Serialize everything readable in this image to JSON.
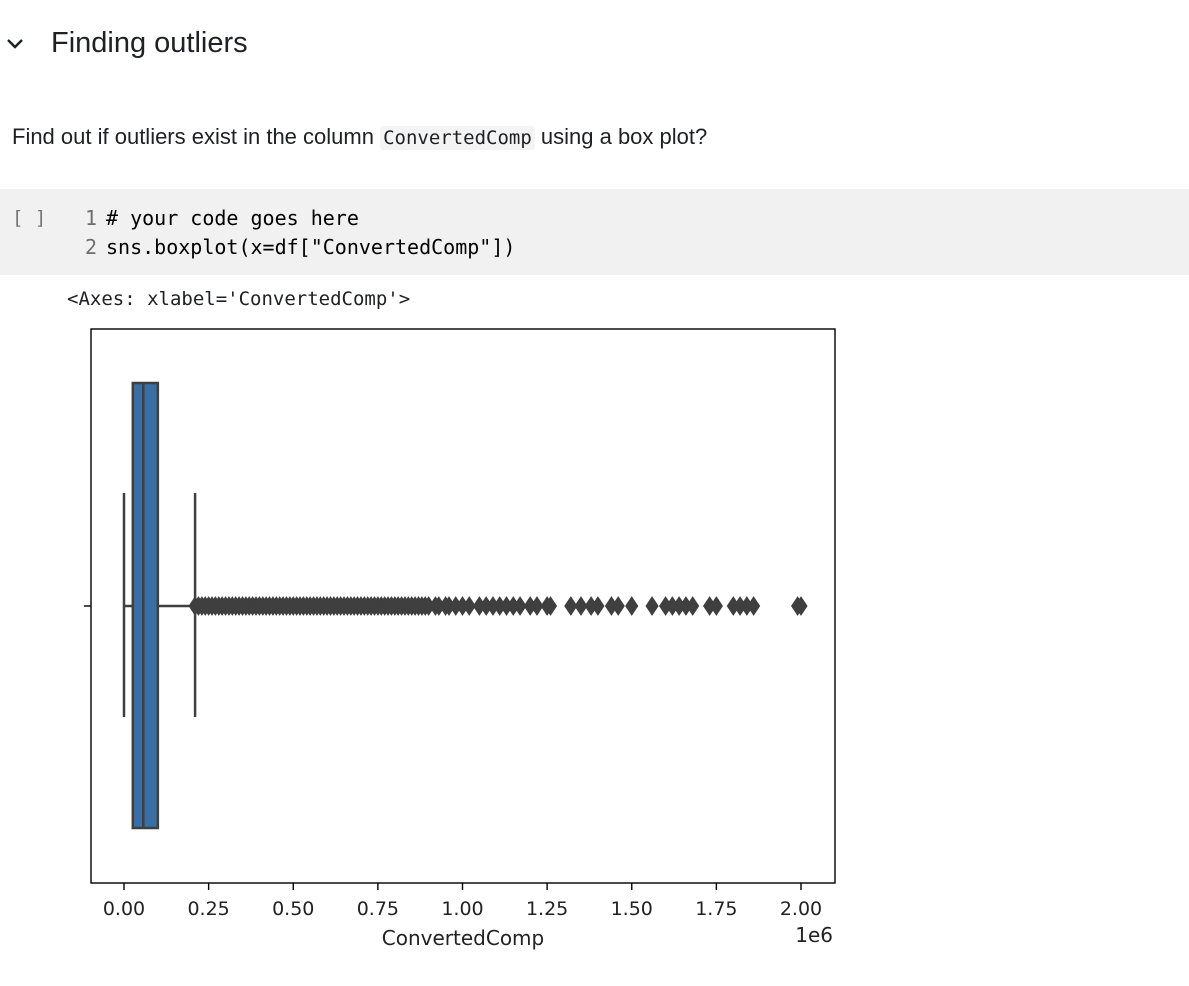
{
  "section": {
    "title": "Finding outliers",
    "toggle_icon": "chevron-down-icon"
  },
  "markdown": {
    "text_before": "Find out if outliers exist in the column ",
    "code": "ConvertedComp",
    "text_after": " using a box plot?"
  },
  "code_cell": {
    "run_indicator": "[ ]",
    "lines": [
      {
        "number": "1",
        "text": "# your code goes here"
      },
      {
        "number": "2",
        "text": "sns.boxplot(x=df[\"ConvertedComp\"])"
      }
    ]
  },
  "output": {
    "text": "<Axes: xlabel='ConvertedComp'>"
  },
  "chart_data": {
    "type": "box",
    "title": "",
    "xlabel": "ConvertedComp",
    "ylabel": "",
    "offset_label": "1e6",
    "xlim": [
      -0.1,
      2.1
    ],
    "scale": 1000000,
    "x_ticks": [
      0.0,
      0.25,
      0.5,
      0.75,
      1.0,
      1.25,
      1.5,
      1.75,
      2.0
    ],
    "x_tick_labels": [
      "0.00",
      "0.25",
      "0.50",
      "0.75",
      "1.00",
      "1.25",
      "1.50",
      "1.75",
      "2.00"
    ],
    "box": {
      "whisker_low": 0.0,
      "q1": 0.026,
      "median": 0.057,
      "q3": 0.1,
      "whisker_high": 0.21
    },
    "box_color": "#3a6fa5",
    "line_color": "#3f3f3f",
    "outliers": [
      0.21,
      0.22,
      0.23,
      0.24,
      0.25,
      0.26,
      0.27,
      0.28,
      0.29,
      0.3,
      0.31,
      0.32,
      0.33,
      0.34,
      0.35,
      0.36,
      0.37,
      0.38,
      0.39,
      0.4,
      0.41,
      0.42,
      0.43,
      0.44,
      0.45,
      0.46,
      0.47,
      0.48,
      0.49,
      0.5,
      0.51,
      0.52,
      0.53,
      0.54,
      0.55,
      0.56,
      0.57,
      0.58,
      0.59,
      0.6,
      0.61,
      0.62,
      0.63,
      0.64,
      0.65,
      0.66,
      0.67,
      0.68,
      0.69,
      0.7,
      0.71,
      0.72,
      0.73,
      0.74,
      0.75,
      0.76,
      0.77,
      0.78,
      0.79,
      0.8,
      0.81,
      0.82,
      0.83,
      0.84,
      0.85,
      0.86,
      0.87,
      0.88,
      0.89,
      0.9,
      0.92,
      0.93,
      0.95,
      0.96,
      0.98,
      1.0,
      1.02,
      1.05,
      1.07,
      1.09,
      1.11,
      1.13,
      1.15,
      1.17,
      1.2,
      1.22,
      1.25,
      1.26,
      1.32,
      1.35,
      1.38,
      1.4,
      1.44,
      1.46,
      1.5,
      1.56,
      1.6,
      1.62,
      1.64,
      1.66,
      1.68,
      1.73,
      1.75,
      1.8,
      1.82,
      1.84,
      1.86,
      1.99,
      2.0
    ]
  }
}
